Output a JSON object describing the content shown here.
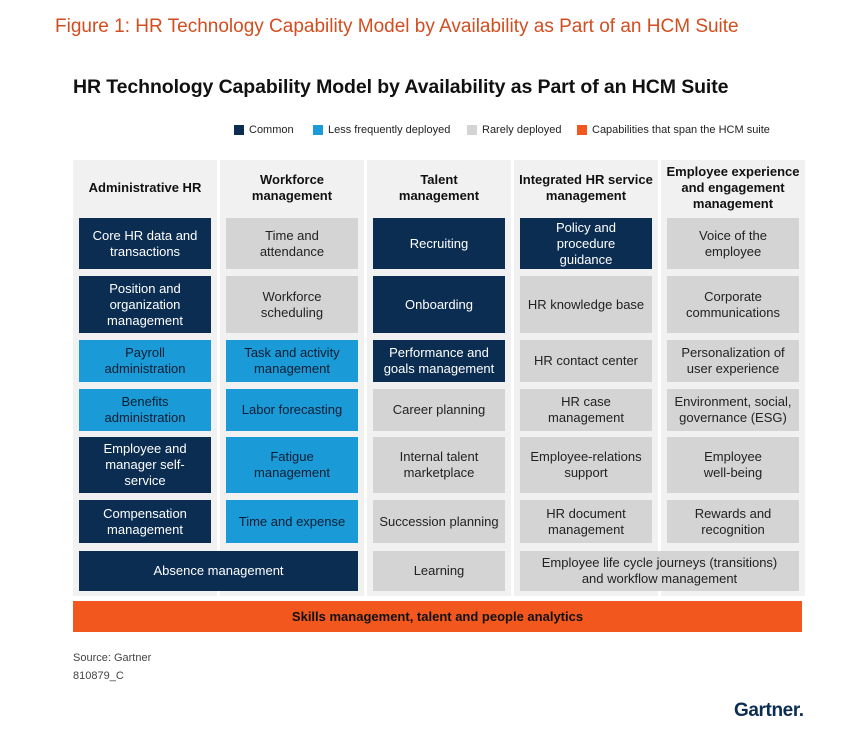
{
  "figure_caption": "Figure 1: HR Technology Capability Model by Availability as Part of an HCM Suite",
  "title": "HR Technology Capability Model by Availability as Part of an HCM Suite",
  "colors": {
    "common": "#0b2d52",
    "less_frequently": "#1a9ad6",
    "rarely": "#d4d4d4",
    "span": "#f2571e",
    "caption": "#d24d1f"
  },
  "legend": [
    {
      "label": "Common",
      "color": "#0b2d52"
    },
    {
      "label": "Less frequently deployed",
      "color": "#1a9ad6"
    },
    {
      "label": "Rarely deployed",
      "color": "#d4d4d4"
    },
    {
      "label": "Capabilities that span the HCM suite",
      "color": "#f2571e"
    }
  ],
  "columns": [
    {
      "header": "Administrative HR",
      "cells": [
        {
          "label": "Core HR data and transactions",
          "level": "common"
        },
        {
          "label": "Position and organization management",
          "level": "common"
        },
        {
          "label": "Payroll administration",
          "level": "less_frequently"
        },
        {
          "label": "Benefits administration",
          "level": "less_frequently"
        },
        {
          "label": "Employee and manager self-service",
          "level": "common"
        },
        {
          "label": "Compensation management",
          "level": "common"
        }
      ]
    },
    {
      "header": "Workforce management",
      "cells": [
        {
          "label": "Time and attendance",
          "level": "rarely"
        },
        {
          "label": "Workforce scheduling",
          "level": "rarely"
        },
        {
          "label": "Task and activity management",
          "level": "less_frequently"
        },
        {
          "label": "Labor forecasting",
          "level": "less_frequently"
        },
        {
          "label": "Fatigue management",
          "level": "less_frequently"
        },
        {
          "label": "Time and expense",
          "level": "less_frequently"
        }
      ]
    },
    {
      "header": "Talent management",
      "cells": [
        {
          "label": "Recruiting",
          "level": "common"
        },
        {
          "label": "Onboarding",
          "level": "common"
        },
        {
          "label": "Performance and goals management",
          "level": "common"
        },
        {
          "label": "Career planning",
          "level": "rarely"
        },
        {
          "label": "Internal talent marketplace",
          "level": "rarely"
        },
        {
          "label": "Succession planning",
          "level": "rarely"
        },
        {
          "label": "Learning",
          "level": "rarely"
        }
      ]
    },
    {
      "header": "Integrated HR service management",
      "cells": [
        {
          "label": "Policy and procedure guidance",
          "level": "common"
        },
        {
          "label": "HR knowledge base",
          "level": "rarely"
        },
        {
          "label": "HR contact center",
          "level": "rarely"
        },
        {
          "label": "HR case management",
          "level": "rarely"
        },
        {
          "label": "Employee-relations support",
          "level": "rarely"
        },
        {
          "label": "HR document management",
          "level": "rarely"
        }
      ]
    },
    {
      "header": "Employee experience and engagement management",
      "cells": [
        {
          "label": "Voice of the employee",
          "level": "rarely"
        },
        {
          "label": "Corporate communications",
          "level": "rarely"
        },
        {
          "label": "Personalization of user experience",
          "level": "rarely"
        },
        {
          "label": "Environment, social, governance (ESG)",
          "level": "rarely"
        },
        {
          "label": "Employee well-being",
          "level": "rarely"
        },
        {
          "label": "Rewards and recognition",
          "level": "rarely"
        }
      ]
    }
  ],
  "wide_cells": [
    {
      "label": "Absence management",
      "level": "common"
    },
    {
      "label": "Employee life cycle journeys (transitions) and workflow management",
      "level": "rarely"
    }
  ],
  "span_bar": "Skills management, talent and people analytics",
  "source": "Source: Gartner",
  "reference": "810879_C",
  "logo_text": "Gartner."
}
